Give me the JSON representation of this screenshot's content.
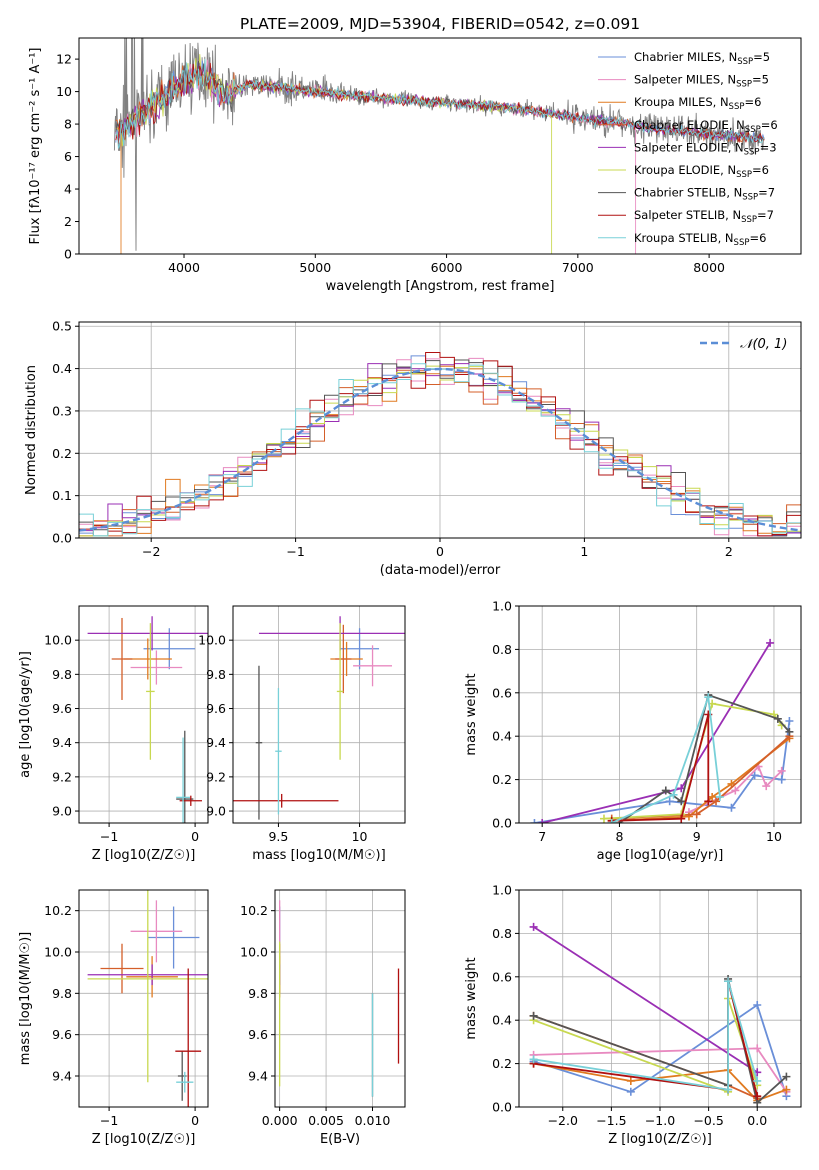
{
  "figure": {
    "title": "PLATE=2009, MJD=53904, FIBERID=0542, z=0.091"
  },
  "series_colors": [
    "#6a8fd8",
    "#e88ac0",
    "#e07a20",
    "#d45f2a",
    "#9a2fb4",
    "#c8d850",
    "#555555",
    "#b01010",
    "#78d0d8"
  ],
  "chart_data": [
    {
      "id": "spectrum",
      "type": "line",
      "xlabel": "wavelength [Angstrom, rest frame]",
      "ylabel": "Flux [fλ10⁻¹⁷ erg cm⁻² s⁻¹ A⁻¹]",
      "xlim": [
        3200,
        8700
      ],
      "ylim": [
        0,
        13.3
      ],
      "xticks": [
        4000,
        5000,
        6000,
        7000,
        8000
      ],
      "yticks": [
        0,
        2,
        4,
        6,
        8,
        10,
        12
      ],
      "grid": false,
      "legend_position": "top-right",
      "legend": [
        "Chabrier MILES, N_SSP=5",
        "Salpeter MILES, N_SSP=5",
        "Kroupa MILES, N_SSP=6",
        "Chabrier ELODIE, N_SSP=6",
        "Salpeter ELODIE, N_SSP=3",
        "Kroupa ELODIE, N_SSP=6",
        "Chabrier STELIB, N_SSP=7",
        "Salpeter STELIB, N_SSP=7",
        "Kroupa STELIB, N_SSP=6"
      ],
      "data_curve": {
        "wavelength": [
          3500,
          3600,
          3700,
          3800,
          3900,
          4000,
          4100,
          4200,
          4300,
          4500,
          4700,
          5000,
          5500,
          6000,
          6500,
          7000,
          7400,
          7500,
          8000,
          8400
        ],
        "flux": [
          7.4,
          8.0,
          8.6,
          9.4,
          10.0,
          10.6,
          11.2,
          10.8,
          9.8,
          10.4,
          10.3,
          10.0,
          9.6,
          9.3,
          9.0,
          8.4,
          8.0,
          7.8,
          7.4,
          7.1
        ]
      },
      "model_cutoffs": {
        "Salpeter MILES": 7440,
        "Kroupa ELODIE": 6800,
        "Kroupa MILES": 3520
      }
    },
    {
      "id": "residuals",
      "type": "line",
      "xlabel": "(data-model)/error",
      "ylabel": "Normed distribution",
      "xlim": [
        -2.5,
        2.5
      ],
      "ylim": [
        0,
        0.51
      ],
      "xticks": [
        -2,
        -1,
        0,
        1,
        2
      ],
      "yticks": [
        0.0,
        0.1,
        0.2,
        0.3,
        0.4,
        0.5
      ],
      "grid": true,
      "legend_position": "top-right",
      "reference_label": "N(0,1)",
      "bins": [
        -2.5,
        2.5,
        50
      ]
    },
    {
      "id": "age-vs-Z",
      "type": "scatter",
      "xlabel": "Z [log10(Z/Z☉)]",
      "ylabel": "age  [log10(age/yr)]",
      "xlim": [
        -1.35,
        0.15
      ],
      "ylim": [
        8.93,
        10.2
      ],
      "xticks": [
        -1,
        0
      ],
      "yticks": [
        9.0,
        9.2,
        9.4,
        9.6,
        9.8,
        10.0
      ],
      "points": [
        {
          "x": -0.3,
          "y": 9.95,
          "xerr": 0.3,
          "yerr": 0.12
        },
        {
          "x": -0.45,
          "y": 9.84,
          "xerr": 0.3,
          "yerr": 0.1
        },
        {
          "x": -0.55,
          "y": 9.89,
          "xerr": 0.28,
          "yerr": 0.12
        },
        {
          "x": -0.85,
          "y": 9.89,
          "xerr": 0.12,
          "yerr": 0.24
        },
        {
          "x": -0.5,
          "y": 10.04,
          "xerr": 0.75,
          "yerr": 0.1
        },
        {
          "x": -0.52,
          "y": 9.7,
          "xerr": 0.05,
          "yerr": 0.4
        },
        {
          "x": -0.12,
          "y": 9.07,
          "xerr": 0.1,
          "yerr": 0.4
        },
        {
          "x": -0.05,
          "y": 9.06,
          "xerr": 0.13,
          "yerr": 0.03
        },
        {
          "x": -0.14,
          "y": 9.08,
          "xerr": 0.08,
          "yerr": 0.35
        }
      ]
    },
    {
      "id": "age-vs-mass",
      "type": "scatter",
      "xlabel": "mass [log10(M/M☉)]",
      "ylabel": "",
      "xlim": [
        9.22,
        10.28
      ],
      "ylim": [
        8.93,
        10.2
      ],
      "xticks": [
        9.5,
        10.0
      ],
      "yticks": [
        9.0,
        9.2,
        9.4,
        9.6,
        9.8,
        10.0
      ],
      "points": [
        {
          "x": 10.0,
          "y": 9.95,
          "xerr": 0.12,
          "yerr": 0.12
        },
        {
          "x": 10.08,
          "y": 9.85,
          "xerr": 0.12,
          "yerr": 0.12
        },
        {
          "x": 9.92,
          "y": 9.89,
          "xerr": 0.1,
          "yerr": 0.1
        },
        {
          "x": 9.9,
          "y": 9.89,
          "xerr": 0.05,
          "yerr": 0.2
        },
        {
          "x": 9.88,
          "y": 10.04,
          "xerr": 0.5,
          "yerr": 0.1
        },
        {
          "x": 9.88,
          "y": 9.7,
          "xerr": 0.02,
          "yerr": 0.4
        },
        {
          "x": 9.38,
          "y": 9.4,
          "xerr": 0.02,
          "yerr": 0.45
        },
        {
          "x": 9.52,
          "y": 9.06,
          "xerr": 0.35,
          "yerr": 0.04
        },
        {
          "x": 9.5,
          "y": 9.35,
          "xerr": 0.02,
          "yerr": 0.37
        }
      ]
    },
    {
      "id": "weight-vs-age",
      "type": "line",
      "xlabel": "age  [log10(age/yr)]",
      "ylabel": "mass weight",
      "xlim": [
        6.7,
        10.35
      ],
      "ylim": [
        0,
        1.0
      ],
      "xticks": [
        7,
        8,
        9,
        10
      ],
      "yticks": [
        0.0,
        0.2,
        0.4,
        0.6,
        0.8,
        1.0
      ],
      "grid": true,
      "series": [
        {
          "x": [
            6.9,
            8.65,
            9.45,
            9.75,
            10.1,
            10.2
          ],
          "y": [
            0.0,
            0.1,
            0.07,
            0.22,
            0.2,
            0.47
          ]
        },
        {
          "x": [
            8.9,
            9.5,
            9.8,
            9.9,
            10.1
          ],
          "y": [
            0.05,
            0.15,
            0.26,
            0.17,
            0.24
          ]
        },
        {
          "x": [
            7.9,
            8.9,
            9.2,
            9.45,
            10.2
          ],
          "y": [
            0.01,
            0.03,
            0.12,
            0.18,
            0.39
          ]
        },
        {
          "x": [
            7.9,
            9.0,
            9.25,
            10.2
          ],
          "y": [
            0.02,
            0.04,
            0.1,
            0.4
          ]
        },
        {
          "x": [
            7.0,
            8.8,
            9.95
          ],
          "y": [
            0.0,
            0.16,
            0.83
          ]
        },
        {
          "x": [
            7.8,
            8.8,
            9.2,
            10.0,
            10.1
          ],
          "y": [
            0.02,
            0.04,
            0.55,
            0.5,
            0.45
          ]
        },
        {
          "x": [
            8.0,
            8.6,
            8.8,
            9.15,
            10.05,
            10.2
          ],
          "y": [
            0.0,
            0.15,
            0.1,
            0.59,
            0.48,
            0.42
          ]
        },
        {
          "x": [
            7.9,
            8.8,
            9.15,
            9.15
          ],
          "y": [
            0.01,
            0.02,
            0.5,
            0.1
          ]
        },
        {
          "x": [
            7.9,
            8.7,
            9.15,
            9.3
          ],
          "y": [
            0.0,
            0.13,
            0.58,
            0.12
          ]
        }
      ]
    },
    {
      "id": "mass-vs-Z",
      "type": "scatter",
      "xlabel": "Z [log10(Z/Z☉)]",
      "ylabel": "mass [log10(M/M☉)]",
      "xlim": [
        -1.35,
        0.15
      ],
      "ylim": [
        9.25,
        10.3
      ],
      "xticks": [
        -1,
        0
      ],
      "yticks": [
        9.4,
        9.6,
        9.8,
        10.0,
        10.2
      ],
      "points": [
        {
          "x": -0.25,
          "y": 10.07,
          "xerr": 0.3,
          "yerr": 0.15
        },
        {
          "x": -0.45,
          "y": 10.1,
          "xerr": 0.3,
          "yerr": 0.15
        },
        {
          "x": -0.5,
          "y": 9.88,
          "xerr": 0.3,
          "yerr": 0.1
        },
        {
          "x": -0.85,
          "y": 9.92,
          "xerr": 0.25,
          "yerr": 0.12
        },
        {
          "x": -0.5,
          "y": 9.89,
          "xerr": 0.75,
          "yerr": 0.05
        },
        {
          "x": -0.55,
          "y": 9.87,
          "xerr": 0.7,
          "yerr": 0.5
        },
        {
          "x": -0.15,
          "y": 9.4,
          "xerr": 0.05,
          "yerr": 0.12
        },
        {
          "x": -0.08,
          "y": 9.52,
          "xerr": 0.15,
          "yerr": 0.4
        },
        {
          "x": -0.12,
          "y": 9.37,
          "xerr": 0.1,
          "yerr": 0.05
        }
      ]
    },
    {
      "id": "mass-vs-EBV",
      "type": "scatter",
      "xlabel": "E(B-V)",
      "ylabel": "",
      "xlim": [
        -0.0005,
        0.0135
      ],
      "ylim": [
        9.25,
        10.3
      ],
      "xticks": [
        0.0,
        0.005,
        0.01
      ],
      "xtick_labels": [
        "0.000",
        "0.005",
        "0.010"
      ],
      "yticks": [
        9.4,
        9.6,
        9.8,
        10.0,
        10.2
      ],
      "points": [
        {
          "x": 0.0,
          "y": 10.07,
          "xerr": 0,
          "yerr": 0.15
        },
        {
          "x": 0.0,
          "y": 10.1,
          "xerr": 0,
          "yerr": 0.15
        },
        {
          "x": 0.0,
          "y": 9.88,
          "xerr": 0,
          "yerr": 0.1
        },
        {
          "x": 0.0,
          "y": 9.92,
          "xerr": 0,
          "yerr": 0.12
        },
        {
          "x": 0.0,
          "y": 9.89,
          "xerr": 0,
          "yerr": 0.05
        },
        {
          "x": 0.0,
          "y": 9.7,
          "xerr": 0,
          "yerr": 0.35
        },
        {
          "x": 0.01,
          "y": 9.55,
          "xerr": 0,
          "yerr": 0.25
        },
        {
          "x": 0.0128,
          "y": 9.69,
          "xerr": 0,
          "yerr": 0.23
        },
        {
          "x": 0.01,
          "y": 9.55,
          "xerr": 0,
          "yerr": 0.25
        }
      ]
    },
    {
      "id": "weight-vs-Z",
      "type": "line",
      "xlabel": "Z [log10(Z/Z☉)]",
      "ylabel": "mass weight",
      "xlim": [
        -2.45,
        0.45
      ],
      "ylim": [
        0,
        1.0
      ],
      "xticks": [
        -2.0,
        -1.5,
        -1.0,
        -0.5,
        0.0
      ],
      "xtick_labels": [
        "−2.0",
        "−1.5",
        "−1.0",
        "−0.5",
        "0.0"
      ],
      "yticks": [
        0.0,
        0.2,
        0.4,
        0.6,
        0.8,
        1.0
      ],
      "grid": true,
      "series": [
        {
          "x": [
            -2.3,
            -1.3,
            0.0,
            0.3
          ],
          "y": [
            0.21,
            0.07,
            0.47,
            0.05
          ]
        },
        {
          "x": [
            -2.3,
            0.0,
            0.3
          ],
          "y": [
            0.24,
            0.27,
            0.07
          ]
        },
        {
          "x": [
            -2.3,
            -1.3,
            -0.3,
            0.0,
            0.3
          ],
          "y": [
            0.2,
            0.12,
            0.17,
            0.03,
            0.08
          ]
        },
        {
          "x": [
            -2.3,
            -0.3,
            0.0
          ],
          "y": [
            0.42,
            0.1,
            0.04
          ]
        },
        {
          "x": [
            -2.3,
            0.0
          ],
          "y": [
            0.83,
            0.16
          ]
        },
        {
          "x": [
            -2.3,
            -0.3,
            -0.3,
            0.0
          ],
          "y": [
            0.4,
            0.07,
            0.5,
            0.1
          ]
        },
        {
          "x": [
            -2.3,
            -0.3,
            -0.3,
            0.0,
            0.3
          ],
          "y": [
            0.42,
            0.1,
            0.59,
            0.02,
            0.14
          ]
        },
        {
          "x": [
            -2.3,
            -0.3,
            -0.3,
            0.0
          ],
          "y": [
            0.2,
            0.08,
            0.58,
            0.05
          ]
        },
        {
          "x": [
            -2.3,
            -0.3,
            -0.3,
            0.0
          ],
          "y": [
            0.22,
            0.08,
            0.58,
            0.12
          ]
        }
      ]
    }
  ]
}
